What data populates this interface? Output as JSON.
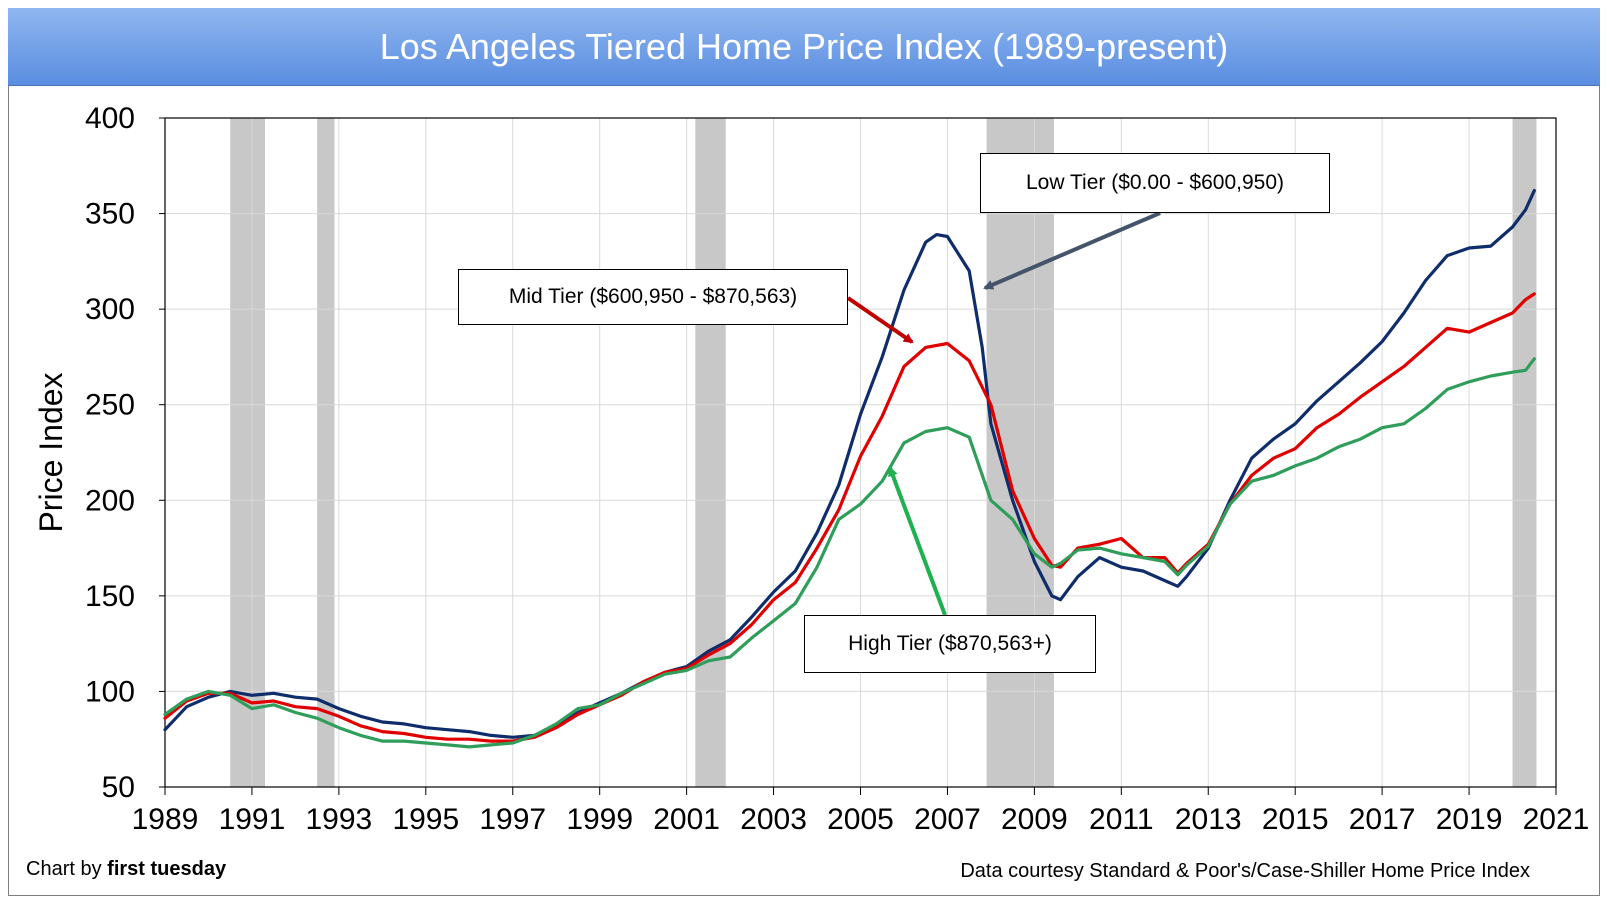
{
  "title": "Los Angeles Tiered Home Price Index (1989-present)",
  "footer": {
    "left_prefix": "Chart by ",
    "left_brand": "first tuesday",
    "right": "Data courtesy Standard & Poor's/Case-Shiller Home Price Index"
  },
  "callouts": {
    "low": "Low Tier ($0.00 - $600,950)",
    "mid": "Mid Tier ($600,950 - $870,563)",
    "high": "High Tier ($870,563+)"
  },
  "chart_data": {
    "type": "line",
    "title": "Los Angeles Tiered Home Price Index (1989-present)",
    "xlabel": "",
    "ylabel": "Price Index",
    "xlim": [
      1989,
      2021
    ],
    "ylim": [
      50,
      400
    ],
    "xticks": [
      "1989",
      "1991",
      "1993",
      "1995",
      "1997",
      "1999",
      "2001",
      "2003",
      "2005",
      "2007",
      "2009",
      "2011",
      "2013",
      "2015",
      "2017",
      "2019",
      "2021"
    ],
    "yticks": [
      "50",
      "100",
      "150",
      "200",
      "250",
      "300",
      "350",
      "400"
    ],
    "grid": true,
    "recessions": [
      [
        1990.5,
        1991.3
      ],
      [
        1992.5,
        1992.9
      ],
      [
        2001.2,
        2001.9
      ],
      [
        2007.9,
        2009.45
      ],
      [
        2020.0,
        2020.55
      ]
    ],
    "series": [
      {
        "name": "Low Tier ($0.00 - $600,950)",
        "color": "#0f2d6b",
        "x": [
          1989.0,
          1989.5,
          1990.0,
          1990.5,
          1991.0,
          1991.5,
          1992.0,
          1992.5,
          1993.0,
          1993.5,
          1994.0,
          1994.5,
          1995.0,
          1995.5,
          1996.0,
          1996.5,
          1997.0,
          1997.5,
          1998.0,
          1998.5,
          1999.0,
          1999.5,
          2000.0,
          2000.5,
          2001.0,
          2001.5,
          2002.0,
          2002.5,
          2003.0,
          2003.5,
          2004.0,
          2004.5,
          2005.0,
          2005.5,
          2006.0,
          2006.5,
          2006.75,
          2007.0,
          2007.5,
          2007.8,
          2008.0,
          2008.5,
          2009.0,
          2009.4,
          2009.6,
          2010.0,
          2010.5,
          2011.0,
          2011.5,
          2012.0,
          2012.3,
          2012.5,
          2013.0,
          2013.5,
          2014.0,
          2014.5,
          2015.0,
          2015.5,
          2016.0,
          2016.5,
          2017.0,
          2017.5,
          2018.0,
          2018.5,
          2019.0,
          2019.5,
          2020.0,
          2020.3,
          2020.5
        ],
        "y": [
          80,
          92,
          97,
          100,
          98,
          99,
          97,
          96,
          91,
          87,
          84,
          83,
          81,
          80,
          79,
          77,
          76,
          77,
          82,
          89,
          94,
          99,
          105,
          110,
          113,
          121,
          127,
          139,
          152,
          163,
          183,
          208,
          245,
          275,
          310,
          335,
          339,
          338,
          320,
          280,
          240,
          200,
          168,
          150,
          148,
          160,
          170,
          165,
          163,
          158,
          155,
          160,
          175,
          200,
          222,
          232,
          240,
          252,
          262,
          272,
          283,
          298,
          315,
          328,
          332,
          333,
          343,
          352,
          362
        ],
        "values": [
          80,
          92,
          97,
          100,
          98,
          99,
          97,
          96,
          91,
          87,
          84,
          83,
          81,
          80,
          79,
          77,
          76,
          77,
          82,
          89,
          94,
          99,
          105,
          110,
          113,
          121,
          127,
          139,
          152,
          163,
          183,
          208,
          245,
          275,
          310,
          335,
          339,
          338,
          320,
          280,
          240,
          200,
          168,
          150,
          148,
          160,
          170,
          165,
          163,
          158,
          155,
          160,
          175,
          200,
          222,
          232,
          240,
          252,
          262,
          272,
          283,
          298,
          315,
          328,
          332,
          333,
          343,
          352,
          362
        ]
      },
      {
        "name": "Mid Tier ($600,950 - $870,563)",
        "color": "#e00000",
        "x": [
          1989.0,
          1989.5,
          1990.0,
          1990.5,
          1991.0,
          1991.5,
          1992.0,
          1992.5,
          1993.0,
          1993.5,
          1994.0,
          1994.5,
          1995.0,
          1995.5,
          1996.0,
          1996.5,
          1997.0,
          1997.5,
          1998.0,
          1998.5,
          1999.0,
          1999.5,
          2000.0,
          2000.5,
          2001.0,
          2001.5,
          2002.0,
          2002.5,
          2003.0,
          2003.5,
          2004.0,
          2004.5,
          2005.0,
          2005.5,
          2006.0,
          2006.5,
          2007.0,
          2007.5,
          2008.0,
          2008.5,
          2009.0,
          2009.4,
          2009.6,
          2010.0,
          2010.5,
          2011.0,
          2011.5,
          2012.0,
          2012.3,
          2012.5,
          2013.0,
          2013.5,
          2014.0,
          2014.5,
          2015.0,
          2015.5,
          2016.0,
          2016.5,
          2017.0,
          2017.5,
          2018.0,
          2018.5,
          2019.0,
          2019.5,
          2020.0,
          2020.3,
          2020.5
        ],
        "y": [
          86,
          95,
          99,
          99,
          94,
          95,
          92,
          91,
          87,
          82,
          79,
          78,
          76,
          75,
          75,
          74,
          74,
          76,
          81,
          88,
          93,
          98,
          105,
          110,
          112,
          119,
          125,
          135,
          148,
          157,
          175,
          195,
          223,
          244,
          270,
          280,
          282,
          273,
          250,
          205,
          180,
          166,
          165,
          175,
          177,
          180,
          170,
          170,
          162,
          167,
          177,
          198,
          213,
          222,
          227,
          238,
          245,
          254,
          262,
          270,
          280,
          290,
          288,
          293,
          298,
          305,
          308
        ],
        "values": [
          86,
          95,
          99,
          99,
          94,
          95,
          92,
          91,
          87,
          82,
          79,
          78,
          76,
          75,
          75,
          74,
          74,
          76,
          81,
          88,
          93,
          98,
          105,
          110,
          112,
          119,
          125,
          135,
          148,
          157,
          175,
          195,
          223,
          244,
          270,
          280,
          282,
          273,
          250,
          205,
          180,
          166,
          165,
          175,
          177,
          180,
          170,
          170,
          162,
          167,
          177,
          198,
          213,
          222,
          227,
          238,
          245,
          254,
          262,
          270,
          280,
          290,
          288,
          293,
          298,
          305,
          308
        ]
      },
      {
        "name": "High Tier ($870,563+)",
        "color": "#2f9e5a",
        "x": [
          1989.0,
          1989.5,
          1990.0,
          1990.5,
          1991.0,
          1991.5,
          1992.0,
          1992.5,
          1993.0,
          1993.5,
          1994.0,
          1994.5,
          1995.0,
          1995.5,
          1996.0,
          1996.5,
          1997.0,
          1997.5,
          1998.0,
          1998.5,
          1999.0,
          1999.5,
          2000.0,
          2000.5,
          2001.0,
          2001.5,
          2002.0,
          2002.5,
          2003.0,
          2003.5,
          2004.0,
          2004.5,
          2005.0,
          2005.5,
          2006.0,
          2006.5,
          2007.0,
          2007.5,
          2008.0,
          2008.5,
          2009.0,
          2009.4,
          2009.6,
          2010.0,
          2010.5,
          2011.0,
          2011.5,
          2012.0,
          2012.3,
          2012.5,
          2013.0,
          2013.5,
          2014.0,
          2014.5,
          2015.0,
          2015.5,
          2016.0,
          2016.5,
          2017.0,
          2017.5,
          2018.0,
          2018.5,
          2019.0,
          2019.5,
          2020.0,
          2020.3,
          2020.5
        ],
        "y": [
          88,
          96,
          100,
          98,
          91,
          93,
          89,
          86,
          81,
          77,
          74,
          74,
          73,
          72,
          71,
          72,
          73,
          77,
          83,
          91,
          93,
          99,
          104,
          109,
          111,
          116,
          118,
          128,
          137,
          146,
          165,
          190,
          198,
          210,
          230,
          236,
          238,
          233,
          200,
          190,
          172,
          165,
          167,
          174,
          175,
          172,
          170,
          168,
          161,
          166,
          176,
          198,
          210,
          213,
          218,
          222,
          228,
          232,
          238,
          240,
          248,
          258,
          262,
          265,
          267,
          268,
          274
        ],
        "values": [
          88,
          96,
          100,
          98,
          91,
          93,
          89,
          86,
          81,
          77,
          74,
          74,
          73,
          72,
          71,
          72,
          73,
          77,
          83,
          91,
          93,
          99,
          104,
          109,
          111,
          116,
          118,
          128,
          137,
          146,
          165,
          190,
          198,
          210,
          230,
          236,
          238,
          233,
          200,
          190,
          172,
          165,
          167,
          174,
          175,
          172,
          170,
          168,
          161,
          166,
          176,
          198,
          210,
          213,
          218,
          222,
          228,
          232,
          238,
          240,
          248,
          258,
          262,
          265,
          267,
          268,
          274
        ]
      }
    ]
  }
}
